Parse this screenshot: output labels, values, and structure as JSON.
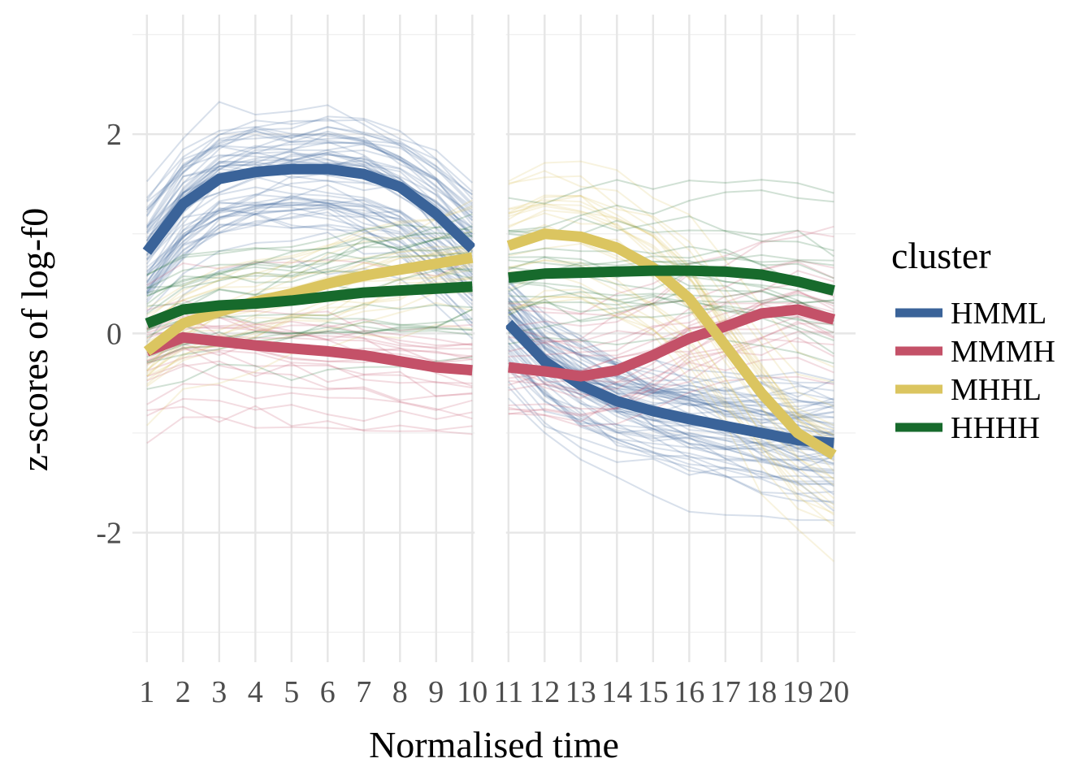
{
  "chart_data": {
    "type": "line",
    "xlabel": "Normalised time",
    "ylabel": "z-scores of log-f0",
    "x": [
      1,
      2,
      3,
      4,
      5,
      6,
      7,
      8,
      9,
      10,
      11,
      12,
      13,
      14,
      15,
      16,
      17,
      18,
      19,
      20
    ],
    "x_tick_labels": [
      "1",
      "2",
      "3",
      "4",
      "5",
      "6",
      "7",
      "8",
      "9",
      "10",
      "11",
      "12",
      "13",
      "14",
      "15",
      "16",
      "17",
      "18",
      "19",
      "20"
    ],
    "y_ticks": [
      -2,
      0,
      2
    ],
    "y_tick_labels": [
      "-2",
      "0",
      "2"
    ],
    "xlim": [
      0.6,
      20.6
    ],
    "ylim": [
      -3.3,
      3.2
    ],
    "grid": true,
    "segments": [
      [
        1,
        10
      ],
      [
        11,
        20
      ]
    ],
    "legend": {
      "title": "cluster",
      "placement": "right"
    },
    "series": [
      {
        "name": "HMML",
        "color": "#3a6399",
        "values": [
          0.82,
          1.3,
          1.55,
          1.62,
          1.65,
          1.65,
          1.6,
          1.47,
          1.2,
          0.85,
          0.1,
          -0.28,
          -0.52,
          -0.68,
          -0.78,
          -0.86,
          -0.93,
          -1.0,
          -1.07,
          -1.1
        ]
      },
      {
        "name": "MMMH",
        "color": "#c45168",
        "values": [
          -0.18,
          -0.04,
          -0.08,
          -0.12,
          -0.15,
          -0.18,
          -0.22,
          -0.28,
          -0.34,
          -0.37,
          -0.34,
          -0.38,
          -0.43,
          -0.37,
          -0.22,
          -0.05,
          0.07,
          0.2,
          0.24,
          0.14
        ]
      },
      {
        "name": "MHHL",
        "color": "#dbc560",
        "values": [
          -0.18,
          0.1,
          0.22,
          0.32,
          0.4,
          0.5,
          0.58,
          0.64,
          0.7,
          0.76,
          0.88,
          1.0,
          0.97,
          0.86,
          0.66,
          0.35,
          -0.12,
          -0.6,
          -1.0,
          -1.22
        ]
      },
      {
        "name": "HHHH",
        "color": "#176a2c",
        "values": [
          0.1,
          0.24,
          0.28,
          0.3,
          0.33,
          0.37,
          0.41,
          0.43,
          0.45,
          0.47,
          0.56,
          0.6,
          0.61,
          0.62,
          0.63,
          0.63,
          0.62,
          0.59,
          0.52,
          0.43
        ]
      }
    ]
  }
}
